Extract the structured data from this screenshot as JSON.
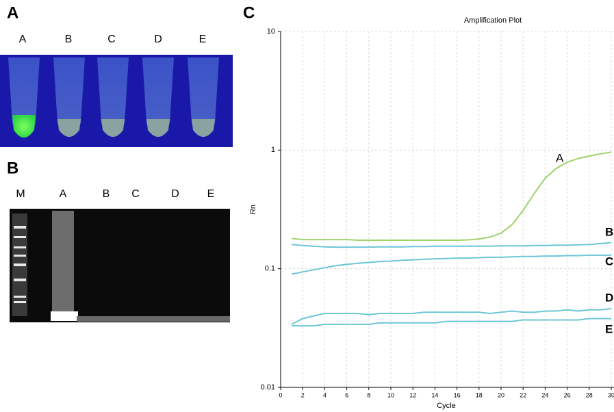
{
  "panels": [
    {
      "label": "A",
      "lanes": [
        "A",
        "B",
        "C",
        "D",
        "E"
      ]
    },
    {
      "label": "B",
      "lanes": [
        "M",
        "A",
        "B",
        "C",
        "D",
        "E"
      ]
    }
  ],
  "chart_data": {
    "type": "line",
    "panel_label": "C",
    "title": "Amplification Plot",
    "x_label": "Cycle",
    "y_label": "Rn",
    "x": [
      1,
      2,
      3,
      4,
      5,
      6,
      7,
      8,
      9,
      10,
      11,
      12,
      13,
      14,
      15,
      16,
      17,
      18,
      19,
      20,
      21,
      22,
      23,
      24,
      25,
      26,
      27,
      28,
      29,
      30
    ],
    "series": [
      {
        "name": "A",
        "color": "#9ed36a",
        "values": [
          0.18,
          0.176,
          0.176,
          0.176,
          0.176,
          0.176,
          0.174,
          0.174,
          0.174,
          0.174,
          0.174,
          0.174,
          0.174,
          0.174,
          0.174,
          0.174,
          0.175,
          0.178,
          0.185,
          0.2,
          0.235,
          0.31,
          0.43,
          0.58,
          0.7,
          0.79,
          0.85,
          0.89,
          0.93,
          0.96
        ]
      },
      {
        "name": "B",
        "color": "#6cc6d6",
        "values": [
          0.16,
          0.157,
          0.155,
          0.153,
          0.152,
          0.152,
          0.152,
          0.152,
          0.153,
          0.153,
          0.153,
          0.154,
          0.154,
          0.155,
          0.155,
          0.155,
          0.155,
          0.155,
          0.155,
          0.156,
          0.156,
          0.156,
          0.157,
          0.157,
          0.158,
          0.158,
          0.159,
          0.16,
          0.163,
          0.166
        ]
      },
      {
        "name": "C",
        "color": "#6cc6d6",
        "values": [
          0.09,
          0.094,
          0.098,
          0.102,
          0.106,
          0.109,
          0.111,
          0.113,
          0.115,
          0.116,
          0.118,
          0.119,
          0.12,
          0.121,
          0.122,
          0.123,
          0.123,
          0.124,
          0.125,
          0.125,
          0.126,
          0.127,
          0.127,
          0.128,
          0.128,
          0.129,
          0.129,
          0.13,
          0.13,
          0.13
        ]
      },
      {
        "name": "D",
        "color": "#6cc6d6",
        "values": [
          0.034,
          0.038,
          0.04,
          0.042,
          0.042,
          0.042,
          0.042,
          0.041,
          0.042,
          0.042,
          0.042,
          0.042,
          0.043,
          0.043,
          0.043,
          0.043,
          0.043,
          0.043,
          0.042,
          0.043,
          0.044,
          0.043,
          0.043,
          0.044,
          0.044,
          0.045,
          0.044,
          0.045,
          0.045,
          0.046
        ]
      },
      {
        "name": "E",
        "color": "#6cc6d6",
        "values": [
          0.033,
          0.033,
          0.033,
          0.034,
          0.034,
          0.034,
          0.034,
          0.034,
          0.035,
          0.035,
          0.035,
          0.035,
          0.035,
          0.035,
          0.036,
          0.036,
          0.036,
          0.036,
          0.036,
          0.036,
          0.036,
          0.037,
          0.037,
          0.037,
          0.037,
          0.037,
          0.037,
          0.038,
          0.038,
          0.038
        ]
      }
    ],
    "xlim": [
      0,
      30
    ],
    "xticks": [
      0,
      2,
      4,
      6,
      8,
      10,
      12,
      14,
      16,
      18,
      20,
      22,
      24,
      26,
      28,
      30
    ],
    "ylim": [
      0.01,
      10
    ],
    "yticks": [
      0.01,
      0.1,
      1,
      10
    ],
    "log_y": true,
    "grid": true
  }
}
